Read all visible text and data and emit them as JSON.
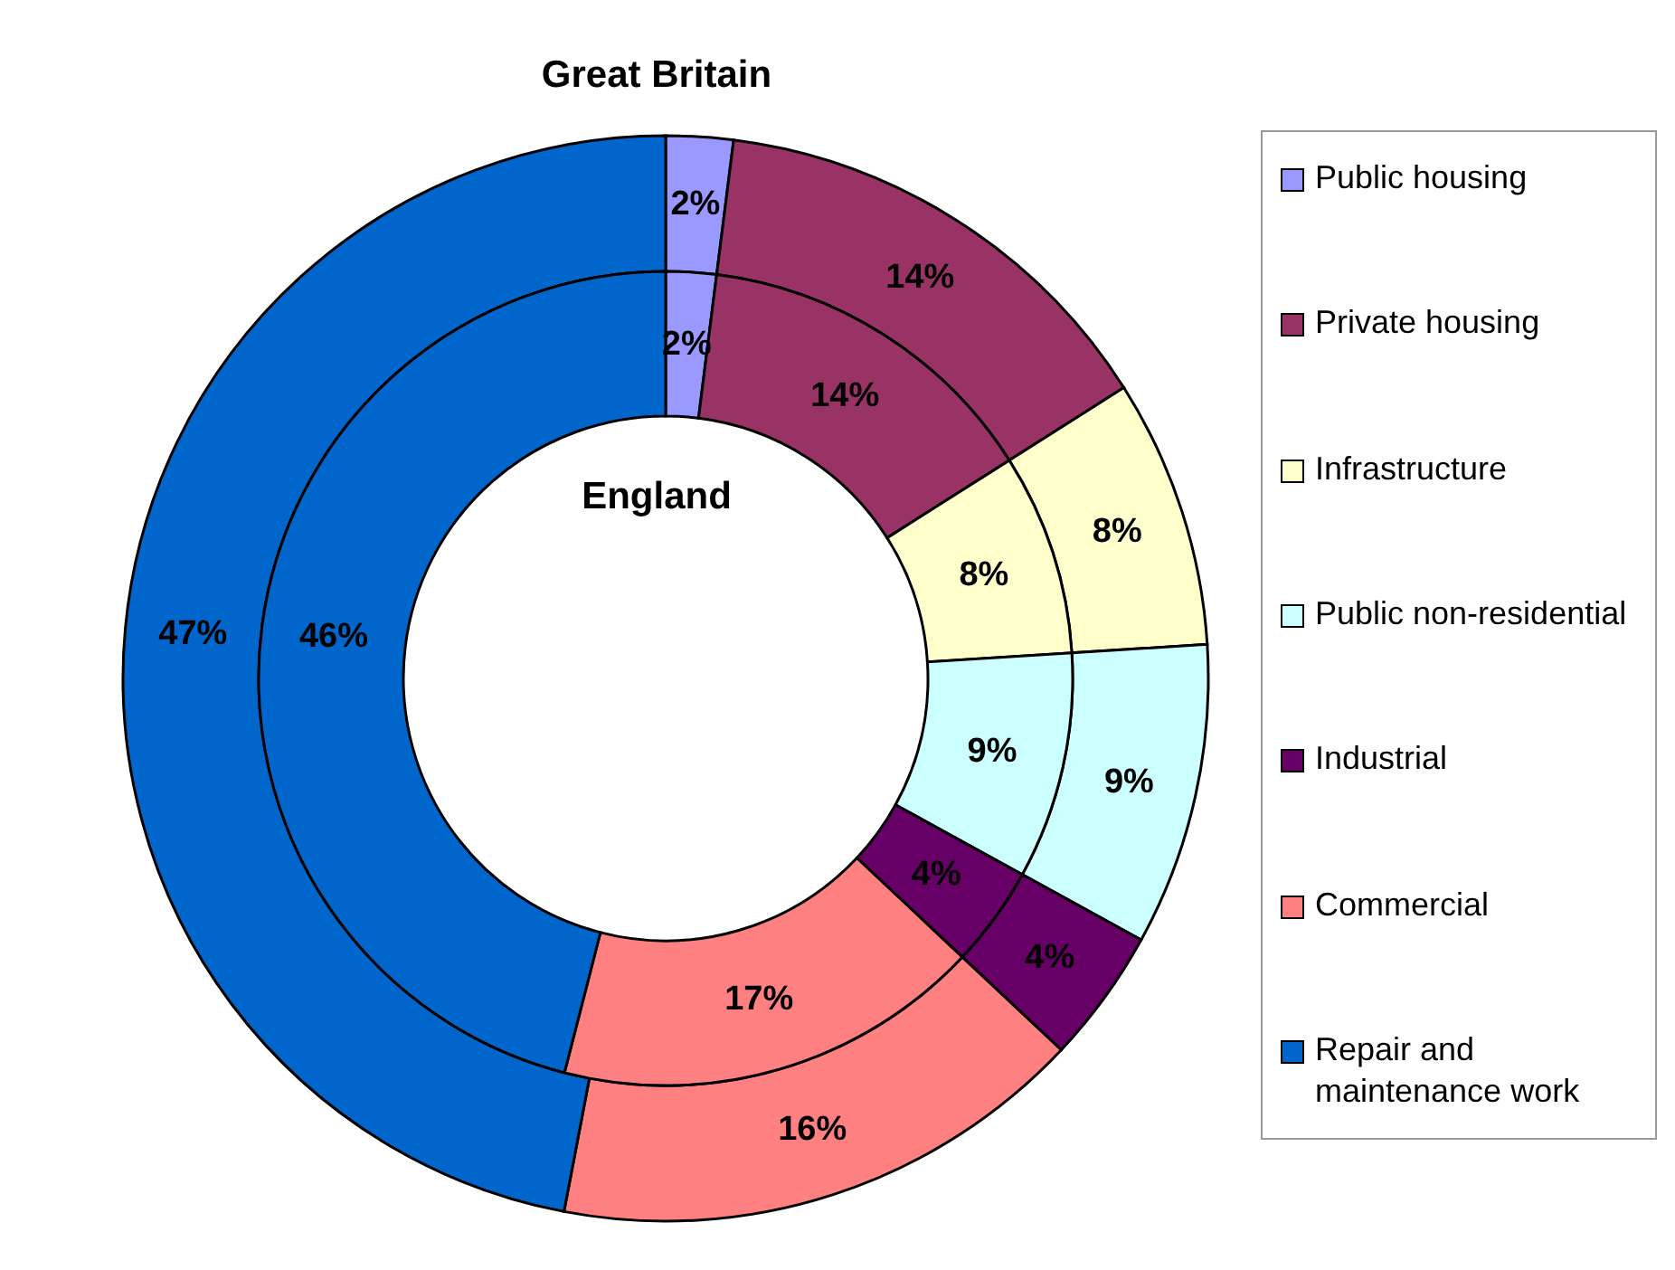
{
  "chart_data": {
    "type": "donut",
    "categories": [
      "Public housing",
      "Private housing",
      "Infrastructure",
      "Public non-residential",
      "Industrial",
      "Commercial",
      "Repair and maintenance work"
    ],
    "colors": [
      "#9999ff",
      "#993366",
      "#ffffcc",
      "#ccffff",
      "#660066",
      "#ff8080",
      "#0066cc"
    ],
    "series": [
      {
        "name": "Great Britain",
        "values": [
          2,
          14,
          8,
          9,
          4,
          16,
          47
        ],
        "value_labels": [
          "2%",
          "14%",
          "8%",
          "9%",
          "4%",
          "16%",
          "47%"
        ]
      },
      {
        "name": "England",
        "values": [
          2,
          14,
          8,
          9,
          4,
          17,
          46
        ],
        "value_labels": [
          "2%",
          "14%",
          "8%",
          "9%",
          "4%",
          "17%",
          "46%"
        ]
      }
    ],
    "legend": "right"
  }
}
